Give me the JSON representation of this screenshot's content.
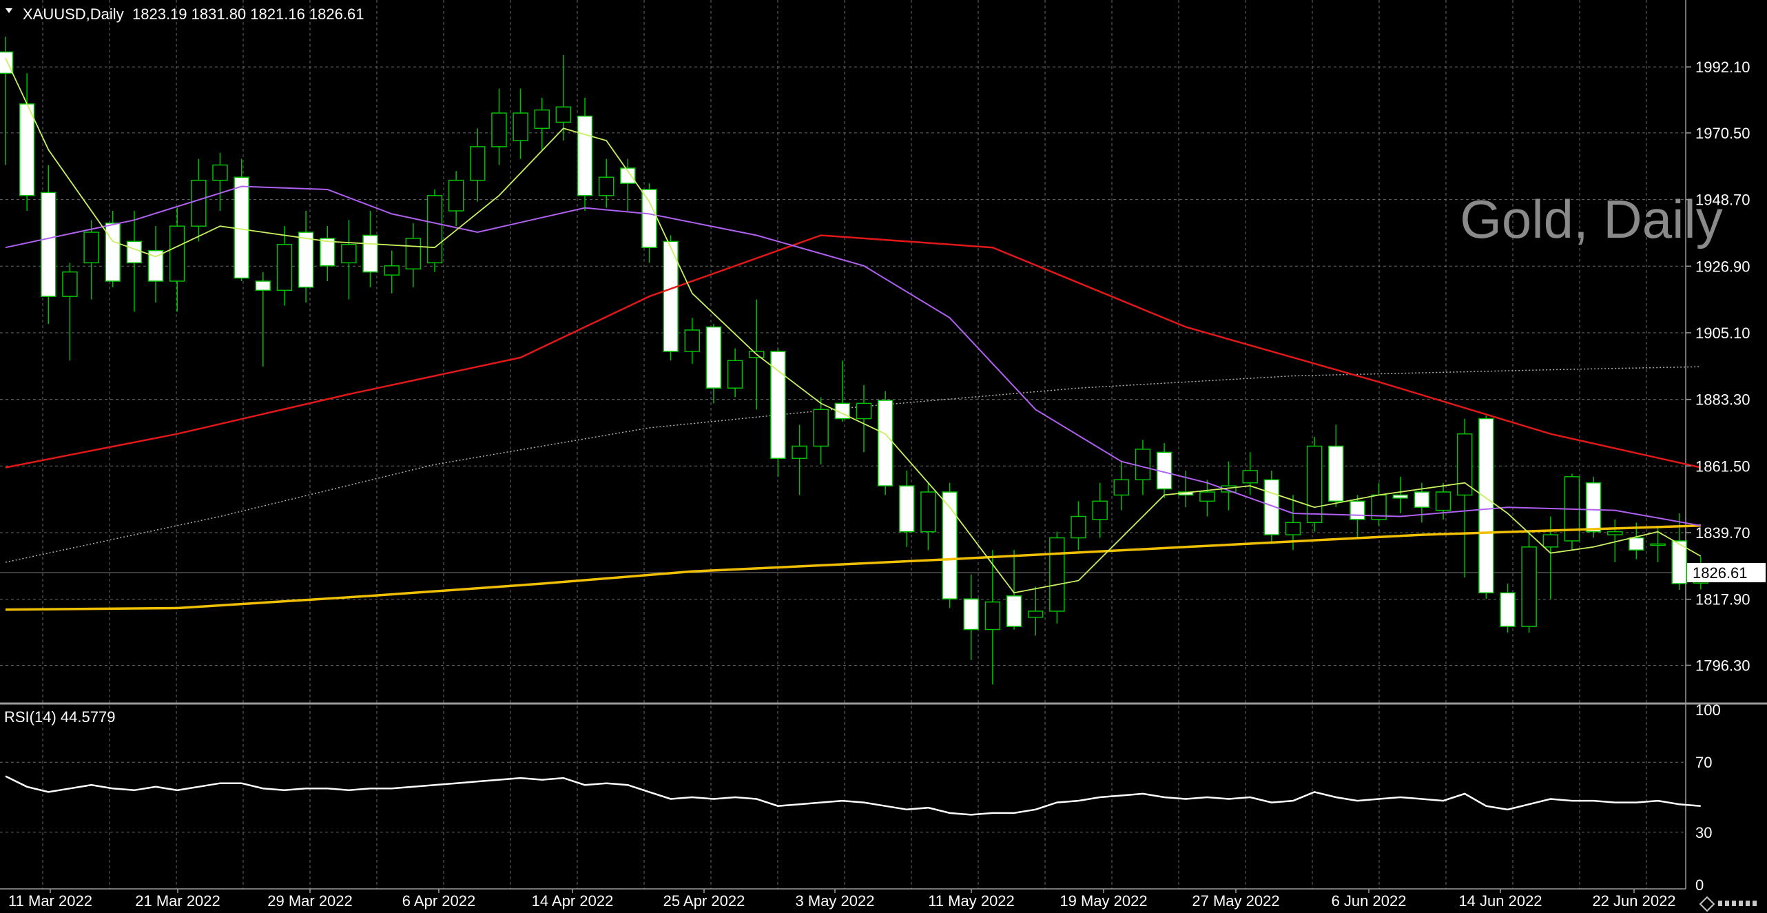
{
  "header": {
    "symbol": "XAUUSD,Daily",
    "ohlc": "1823.19 1831.80 1821.16 1826.61"
  },
  "watermark": "Gold, Daily",
  "price_axis": {
    "ticks": [
      "1992.10",
      "1970.50",
      "1948.70",
      "1926.90",
      "1905.10",
      "1883.30",
      "1861.50",
      "1839.70",
      "1817.90",
      "1796.30"
    ],
    "current_price": "1826.61"
  },
  "rsi": {
    "label": "RSI(14) 44.5779",
    "ticks": [
      "100",
      "70",
      "30",
      "0"
    ]
  },
  "time_axis": {
    "labels": [
      "11 Mar 2022",
      "21 Mar 2022",
      "29 Mar 2022",
      "6 Apr 2022",
      "14 Apr 2022",
      "25 Apr 2022",
      "3 May 2022",
      "11 May 2022",
      "19 May 2022",
      "27 May 2022",
      "6 Jun 2022",
      "14 Jun 2022",
      "22 Jun 2022"
    ]
  },
  "colors": {
    "background": "#000000",
    "bull_candle": "#000000",
    "bear_candle": "#ffffff",
    "wick": "#00c000",
    "ma_fast": "#c8f060",
    "ma_purple": "#b060f0",
    "ma_red": "#e01818",
    "ma_yellow": "#f0c000",
    "ma_dotted": "#b0b0b0",
    "rsi_line": "#ffffff",
    "grid": "#6a6a6a"
  },
  "chart_data": {
    "type": "candlestick",
    "y_range": [
      1784,
      2014
    ],
    "rsi_range": [
      0,
      100
    ],
    "candles": [
      {
        "o": 1997,
        "h": 2002,
        "l": 1960,
        "c": 1990
      },
      {
        "o": 1980,
        "h": 1990,
        "l": 1945,
        "c": 1950
      },
      {
        "o": 1951,
        "h": 1960,
        "l": 1908,
        "c": 1917
      },
      {
        "o": 1917,
        "h": 1928,
        "l": 1896,
        "c": 1925
      },
      {
        "o": 1928,
        "h": 1942,
        "l": 1916,
        "c": 1938
      },
      {
        "o": 1941,
        "h": 1945,
        "l": 1920,
        "c": 1922
      },
      {
        "o": 1935,
        "h": 1945,
        "l": 1912,
        "c": 1928
      },
      {
        "o": 1932,
        "h": 1940,
        "l": 1915,
        "c": 1922
      },
      {
        "o": 1922,
        "h": 1946,
        "l": 1912,
        "c": 1940
      },
      {
        "o": 1940,
        "h": 1962,
        "l": 1935,
        "c": 1955
      },
      {
        "o": 1955,
        "h": 1964,
        "l": 1945,
        "c": 1960
      },
      {
        "o": 1956,
        "h": 1962,
        "l": 1922,
        "c": 1923
      },
      {
        "o": 1922,
        "h": 1925,
        "l": 1894,
        "c": 1919
      },
      {
        "o": 1919,
        "h": 1940,
        "l": 1914,
        "c": 1934
      },
      {
        "o": 1938,
        "h": 1945,
        "l": 1915,
        "c": 1920
      },
      {
        "o": 1936,
        "h": 1940,
        "l": 1922,
        "c": 1927
      },
      {
        "o": 1928,
        "h": 1942,
        "l": 1916,
        "c": 1934
      },
      {
        "o": 1937,
        "h": 1945,
        "l": 1920,
        "c": 1925
      },
      {
        "o": 1924,
        "h": 1932,
        "l": 1918,
        "c": 1927
      },
      {
        "o": 1926,
        "h": 1941,
        "l": 1920,
        "c": 1936
      },
      {
        "o": 1928,
        "h": 1952,
        "l": 1925,
        "c": 1950
      },
      {
        "o": 1945,
        "h": 1958,
        "l": 1940,
        "c": 1955
      },
      {
        "o": 1955,
        "h": 1972,
        "l": 1948,
        "c": 1966
      },
      {
        "o": 1966,
        "h": 1985,
        "l": 1960,
        "c": 1977
      },
      {
        "o": 1968,
        "h": 1985,
        "l": 1962,
        "c": 1977
      },
      {
        "o": 1972,
        "h": 1982,
        "l": 1965,
        "c": 1978
      },
      {
        "o": 1974,
        "h": 1996,
        "l": 1968,
        "c": 1979
      },
      {
        "o": 1976,
        "h": 1982,
        "l": 1945,
        "c": 1950
      },
      {
        "o": 1950,
        "h": 1962,
        "l": 1946,
        "c": 1956
      },
      {
        "o": 1959,
        "h": 1962,
        "l": 1945,
        "c": 1954
      },
      {
        "o": 1952,
        "h": 1954,
        "l": 1928,
        "c": 1933
      },
      {
        "o": 1935,
        "h": 1937,
        "l": 1896,
        "c": 1899
      },
      {
        "o": 1899,
        "h": 1910,
        "l": 1895,
        "c": 1906
      },
      {
        "o": 1907,
        "h": 1908,
        "l": 1882,
        "c": 1887
      },
      {
        "o": 1887,
        "h": 1900,
        "l": 1884,
        "c": 1896
      },
      {
        "o": 1897,
        "h": 1916,
        "l": 1880,
        "c": 1899
      },
      {
        "o": 1899,
        "h": 1900,
        "l": 1858,
        "c": 1864
      },
      {
        "o": 1864,
        "h": 1875,
        "l": 1852,
        "c": 1868
      },
      {
        "o": 1868,
        "h": 1884,
        "l": 1862,
        "c": 1880
      },
      {
        "o": 1882,
        "h": 1896,
        "l": 1876,
        "c": 1877
      },
      {
        "o": 1877,
        "h": 1888,
        "l": 1866,
        "c": 1882
      },
      {
        "o": 1883,
        "h": 1886,
        "l": 1852,
        "c": 1855
      },
      {
        "o": 1855,
        "h": 1860,
        "l": 1835,
        "c": 1840
      },
      {
        "o": 1840,
        "h": 1856,
        "l": 1834,
        "c": 1853
      },
      {
        "o": 1853,
        "h": 1856,
        "l": 1815,
        "c": 1818
      },
      {
        "o": 1818,
        "h": 1826,
        "l": 1798,
        "c": 1808
      },
      {
        "o": 1808,
        "h": 1834,
        "l": 1790,
        "c": 1817
      },
      {
        "o": 1819,
        "h": 1834,
        "l": 1808,
        "c": 1809
      },
      {
        "o": 1812,
        "h": 1822,
        "l": 1806,
        "c": 1814
      },
      {
        "o": 1814,
        "h": 1840,
        "l": 1810,
        "c": 1838
      },
      {
        "o": 1838,
        "h": 1850,
        "l": 1834,
        "c": 1845
      },
      {
        "o": 1844,
        "h": 1856,
        "l": 1838,
        "c": 1850
      },
      {
        "o": 1852,
        "h": 1863,
        "l": 1847,
        "c": 1857
      },
      {
        "o": 1857,
        "h": 1870,
        "l": 1852,
        "c": 1867
      },
      {
        "o": 1866,
        "h": 1869,
        "l": 1851,
        "c": 1854
      },
      {
        "o": 1853,
        "h": 1860,
        "l": 1848,
        "c": 1852
      },
      {
        "o": 1850,
        "h": 1857,
        "l": 1845,
        "c": 1853
      },
      {
        "o": 1853,
        "h": 1863,
        "l": 1847,
        "c": 1855
      },
      {
        "o": 1856,
        "h": 1866,
        "l": 1852,
        "c": 1860
      },
      {
        "o": 1857,
        "h": 1860,
        "l": 1836,
        "c": 1839
      },
      {
        "o": 1839,
        "h": 1852,
        "l": 1834,
        "c": 1843
      },
      {
        "o": 1843,
        "h": 1871,
        "l": 1840,
        "c": 1868
      },
      {
        "o": 1868,
        "h": 1875,
        "l": 1848,
        "c": 1850
      },
      {
        "o": 1850,
        "h": 1852,
        "l": 1838,
        "c": 1844
      },
      {
        "o": 1844,
        "h": 1856,
        "l": 1842,
        "c": 1852
      },
      {
        "o": 1852,
        "h": 1858,
        "l": 1846,
        "c": 1851
      },
      {
        "o": 1853,
        "h": 1856,
        "l": 1843,
        "c": 1848
      },
      {
        "o": 1847,
        "h": 1856,
        "l": 1844,
        "c": 1853
      },
      {
        "o": 1852,
        "h": 1877,
        "l": 1825,
        "c": 1872
      },
      {
        "o": 1877,
        "h": 1878,
        "l": 1818,
        "c": 1820
      },
      {
        "o": 1820,
        "h": 1823,
        "l": 1807,
        "c": 1809
      },
      {
        "o": 1809,
        "h": 1840,
        "l": 1807,
        "c": 1835
      },
      {
        "o": 1835,
        "h": 1845,
        "l": 1818,
        "c": 1839
      },
      {
        "o": 1837,
        "h": 1859,
        "l": 1834,
        "c": 1858
      },
      {
        "o": 1856,
        "h": 1858,
        "l": 1838,
        "c": 1840
      },
      {
        "o": 1839,
        "h": 1844,
        "l": 1830,
        "c": 1840
      },
      {
        "o": 1838,
        "h": 1843,
        "l": 1831,
        "c": 1834
      },
      {
        "o": 1836,
        "h": 1842,
        "l": 1830,
        "c": 1836
      },
      {
        "o": 1837,
        "h": 1846,
        "l": 1821,
        "c": 1823
      },
      {
        "o": 1823.19,
        "h": 1831.8,
        "l": 1821.16,
        "c": 1826.61
      }
    ],
    "ma_yellow": [
      [
        0,
        1814.5
      ],
      [
        8,
        1815
      ],
      [
        17,
        1819
      ],
      [
        25,
        1823
      ],
      [
        32,
        1827
      ],
      [
        44,
        1831
      ],
      [
        55,
        1835
      ],
      [
        66,
        1839
      ],
      [
        79,
        1842
      ]
    ],
    "ma_red": [
      [
        0,
        1861
      ],
      [
        8,
        1872
      ],
      [
        16,
        1885
      ],
      [
        24,
        1897
      ],
      [
        30,
        1917
      ],
      [
        38,
        1937
      ],
      [
        46,
        1933
      ],
      [
        55,
        1907
      ],
      [
        64,
        1889
      ],
      [
        72,
        1872
      ],
      [
        79,
        1861
      ]
    ],
    "ma_dotted": [
      [
        0,
        1830
      ],
      [
        10,
        1845
      ],
      [
        20,
        1862
      ],
      [
        30,
        1874
      ],
      [
        40,
        1881
      ],
      [
        50,
        1887
      ],
      [
        60,
        1891
      ],
      [
        72,
        1893
      ],
      [
        79,
        1894
      ]
    ],
    "ma_purple": [
      [
        0,
        1933
      ],
      [
        6,
        1942
      ],
      [
        11,
        1953
      ],
      [
        15,
        1952
      ],
      [
        18,
        1944
      ],
      [
        22,
        1938
      ],
      [
        27,
        1946
      ],
      [
        30,
        1944
      ],
      [
        35,
        1937
      ],
      [
        40,
        1927
      ],
      [
        44,
        1910
      ],
      [
        48,
        1880
      ],
      [
        52,
        1863
      ],
      [
        56,
        1856
      ],
      [
        60,
        1846
      ],
      [
        65,
        1845
      ],
      [
        70,
        1848
      ],
      [
        75,
        1847
      ],
      [
        79,
        1842
      ]
    ],
    "ma_fast": [
      [
        0,
        1995
      ],
      [
        2,
        1965
      ],
      [
        5,
        1935
      ],
      [
        7,
        1930
      ],
      [
        10,
        1940
      ],
      [
        12,
        1938
      ],
      [
        15,
        1935
      ],
      [
        20,
        1933
      ],
      [
        23,
        1950
      ],
      [
        26,
        1972
      ],
      [
        28,
        1968
      ],
      [
        30,
        1948
      ],
      [
        32,
        1918
      ],
      [
        35,
        1898
      ],
      [
        38,
        1882
      ],
      [
        41,
        1872
      ],
      [
        44,
        1848
      ],
      [
        47,
        1820
      ],
      [
        50,
        1824
      ],
      [
        54,
        1852
      ],
      [
        58,
        1855
      ],
      [
        61,
        1848
      ],
      [
        64,
        1852
      ],
      [
        68,
        1856
      ],
      [
        70,
        1846
      ],
      [
        72,
        1833
      ],
      [
        74,
        1835
      ],
      [
        77,
        1840
      ],
      [
        79,
        1832
      ]
    ],
    "rsi_values": [
      62,
      56,
      53,
      55,
      57,
      55,
      54,
      56,
      54,
      56,
      58,
      58,
      55,
      54,
      55,
      55,
      54,
      55,
      55,
      56,
      57,
      58,
      59,
      60,
      61,
      60,
      61,
      57,
      58,
      57,
      53,
      49,
      50,
      49,
      50,
      49,
      45,
      46,
      47,
      48,
      47,
      45,
      43,
      44,
      41,
      40,
      41,
      41,
      43,
      47,
      48,
      50,
      51,
      52,
      50,
      49,
      50,
      49,
      50,
      47,
      48,
      53,
      50,
      48,
      49,
      50,
      49,
      48,
      52,
      45,
      43,
      46,
      49,
      48,
      48,
      47,
      47,
      48,
      46,
      45
    ]
  }
}
